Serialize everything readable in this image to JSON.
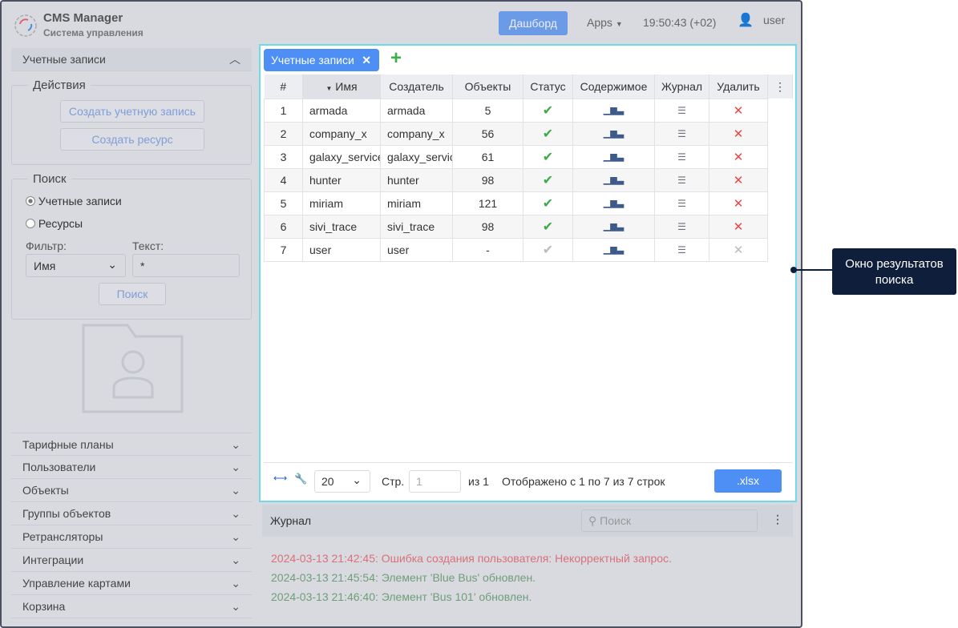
{
  "header": {
    "app_title": "CMS Manager",
    "app_subtitle": "Система управления",
    "dashboard": "Дашборд",
    "apps": "Apps",
    "time": "19:50:43 (+02)",
    "user": "user"
  },
  "sidebar": {
    "section": "Учетные записи",
    "actions": {
      "legend": "Действия",
      "create_account": "Создать учетную запись",
      "create_resource": "Создать ресурс"
    },
    "search": {
      "legend": "Поиск",
      "radio_accounts": "Учетные записи",
      "radio_resources": "Ресурсы",
      "filter_label": "Фильтр:",
      "filter_value": "Имя",
      "text_label": "Текст:",
      "text_value": "*",
      "button": "Поиск"
    },
    "items": [
      "Тарифные планы",
      "Пользователи",
      "Объекты",
      "Группы объектов",
      "Ретрансляторы",
      "Интеграции",
      "Управление картами",
      "Корзина"
    ]
  },
  "results": {
    "tab": "Учетные записи",
    "columns": [
      "#",
      "Имя",
      "Создатель",
      "Объекты",
      "Статус",
      "Содержимое",
      "Журнал",
      "Удалить"
    ],
    "rows": [
      {
        "n": "1",
        "name": "armada",
        "creator": "armada",
        "objects": "5",
        "active": true
      },
      {
        "n": "2",
        "name": "company_x",
        "creator": "company_x",
        "objects": "56",
        "active": true
      },
      {
        "n": "3",
        "name": "galaxy_service",
        "creator": "galaxy_service",
        "objects": "61",
        "active": true
      },
      {
        "n": "4",
        "name": "hunter",
        "creator": "hunter",
        "objects": "98",
        "active": true
      },
      {
        "n": "5",
        "name": "miriam",
        "creator": "miriam",
        "objects": "121",
        "active": true
      },
      {
        "n": "6",
        "name": "sivi_trace",
        "creator": "sivi_trace",
        "objects": "98",
        "active": true
      },
      {
        "n": "7",
        "name": "user",
        "creator": "user",
        "objects": "-",
        "active": false
      }
    ],
    "footer": {
      "page_size": "20",
      "page_label": "Стр.",
      "page": "1",
      "of": "из 1",
      "shown": "Отображено с 1 по 7 из 7 строк",
      "export": ".xlsx"
    }
  },
  "journal": {
    "title": "Журнал",
    "search_placeholder": "Поиск",
    "entries": [
      {
        "text": "2024-03-13 21:42:45: Ошибка создания пользователя: Некорректный запрос.",
        "color": "#d9707a"
      },
      {
        "text": "2024-03-13 21:45:54: Элемент 'Blue Bus' обновлен.",
        "color": "#6f9e78"
      },
      {
        "text": "2024-03-13 21:46:40: Элемент 'Bus 101' обновлен.",
        "color": "#6f9e78"
      }
    ]
  },
  "callout": "Окно результатов поиска"
}
